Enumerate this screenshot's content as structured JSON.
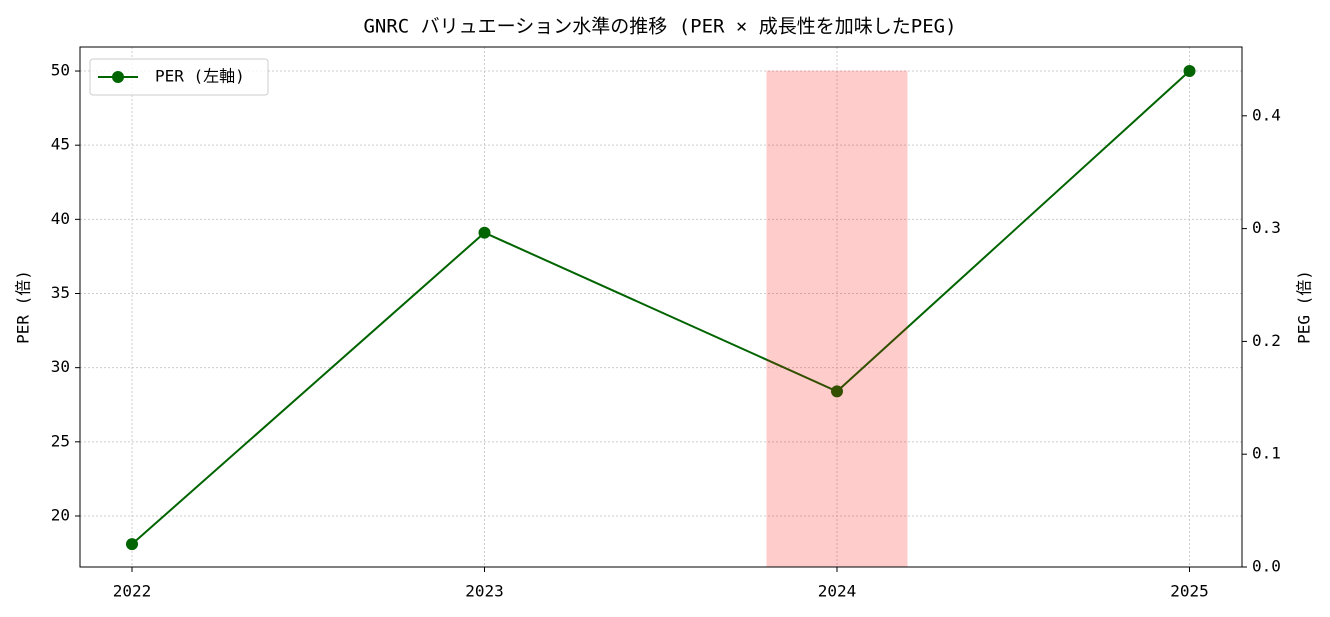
{
  "chart_data": {
    "type": "line",
    "title": "GNRC バリュエーション水準の推移 (PER × 成長性を加味したPEG)",
    "ylabel": "PER (倍)",
    "y2label": "PEG (倍)",
    "categories": [
      "2022",
      "2023",
      "2024",
      "2025"
    ],
    "series": [
      {
        "name": "PER (左軸)",
        "color": "#006400",
        "type": "line",
        "values": [
          18.1,
          39.1,
          28.4,
          50.0
        ]
      },
      {
        "color": "#ff0000",
        "alpha": 0.2,
        "type": "bar",
        "axis": "y2",
        "values": [
          null,
          null,
          0.44,
          null
        ]
      }
    ],
    "ylim": [
      16.56,
      51.62
    ],
    "yticks": [
      20,
      25,
      30,
      35,
      40,
      45,
      50
    ],
    "y2lim": [
      0,
      0.461
    ],
    "y2ticks": [
      {
        "value": 0,
        "label": "0.0"
      },
      0.1,
      0.2,
      0.3,
      0.4
    ],
    "grid": true,
    "legend": "upper left"
  }
}
